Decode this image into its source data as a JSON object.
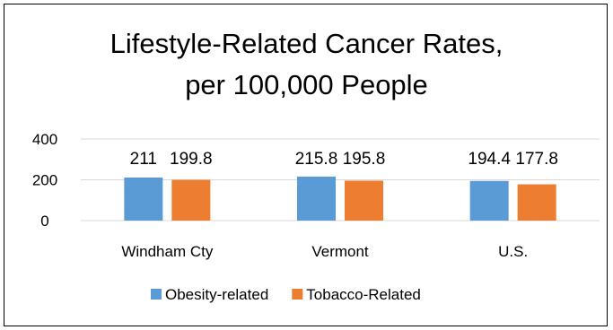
{
  "chart_data": {
    "type": "bar",
    "title_lines": [
      "Lifestyle-Related Cancer Rates,",
      "per 100,000 People"
    ],
    "categories": [
      "Windham Cty",
      "Vermont",
      "U.S."
    ],
    "series": [
      {
        "name": "Obesity-related",
        "values": [
          211,
          215.8,
          194.4
        ],
        "color": "#5b9bd5"
      },
      {
        "name": "Tobacco-Related",
        "values": [
          199.8,
          195.8,
          177.8
        ],
        "color": "#ed7d31"
      }
    ],
    "data_labels": [
      [
        "211",
        "215.8",
        "194.4"
      ],
      [
        "199.8",
        "195.8",
        "177.8"
      ]
    ],
    "yticks": [
      "0",
      "200",
      "400"
    ],
    "ylim": [
      0,
      400
    ],
    "grid": true,
    "legend": "bottom"
  }
}
